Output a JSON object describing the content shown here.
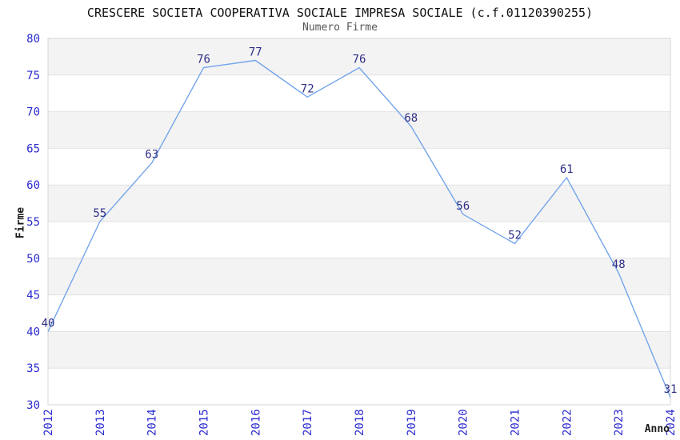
{
  "chart_data": {
    "type": "line",
    "title": "CRESCERE SOCIETA COOPERATIVA SOCIALE IMPRESA SOCIALE (c.f.01120390255)",
    "subtitle": "Numero Firme",
    "xlabel": "Anno",
    "ylabel": "Firme",
    "categories": [
      "2012",
      "2013",
      "2014",
      "2015",
      "2016",
      "2017",
      "2018",
      "2019",
      "2020",
      "2021",
      "2022",
      "2023",
      "2024"
    ],
    "series": [
      {
        "name": "Numero Firme",
        "values": [
          40,
          55,
          63,
          76,
          77,
          72,
          76,
          68,
          56,
          52,
          61,
          48,
          31
        ]
      }
    ],
    "ylim": [
      30,
      80
    ],
    "ytick_step": 5,
    "grid": "horizontal-bands",
    "legend": "none",
    "point_labels_visible": true,
    "colors": {
      "line": "#74a5ea",
      "point_label": "#2f2f87",
      "tick_label": "#2b2bd0",
      "band_gray": "#f3f3f3",
      "band_white": "#ffffff",
      "gridline": "#e2e2e2",
      "plot_border": "#d4d4d4",
      "title": "#111111",
      "subtitle": "#555555",
      "axis_title": "#1a1a1a"
    }
  }
}
